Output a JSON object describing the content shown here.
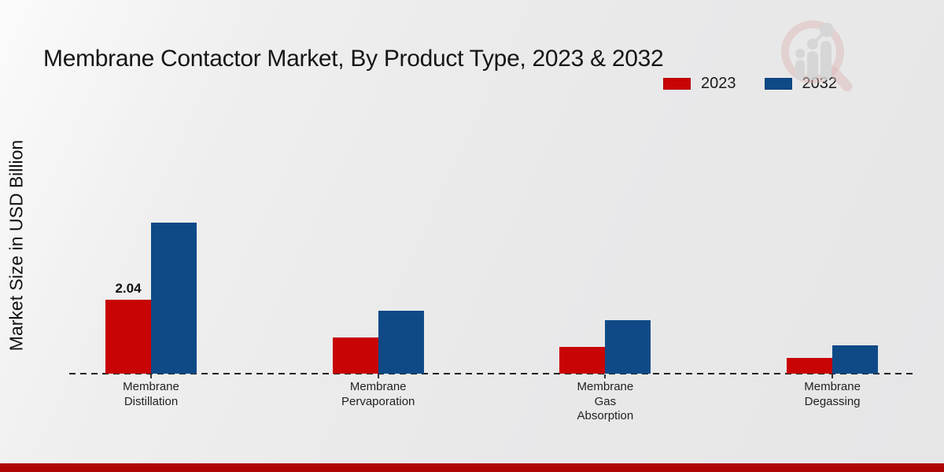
{
  "title": "Membrane Contactor Market, By Product Type, 2023 & 2032",
  "y_axis_label": "Market Size in USD Billion",
  "legend": {
    "items": [
      {
        "label": "2023",
        "color": "#c80404"
      },
      {
        "label": "2032",
        "color": "#0f4a87"
      }
    ]
  },
  "watermark_icon": "magnifier-bar-chart-logo",
  "colors": {
    "series_2023": "#c80404",
    "series_2032": "#0f4a87",
    "background": "#e9e9ea",
    "footer_band": "#b10505",
    "axis_line": "#222222"
  },
  "chart_data": {
    "type": "bar",
    "title": "Membrane Contactor Market, By Product Type, 2023 & 2032",
    "xlabel": "",
    "ylabel": "Market Size in USD Billion",
    "categories": [
      "Membrane\nDistillation",
      "Membrane\nPervaporation",
      "Membrane\nGas\nAbsorption",
      "Membrane\nDegassing"
    ],
    "series": [
      {
        "name": "2023",
        "color": "#c80404",
        "values": [
          2.04,
          1.0,
          0.74,
          0.44
        ],
        "labels": [
          "2.04",
          "",
          "",
          ""
        ]
      },
      {
        "name": "2032",
        "color": "#0f4a87",
        "values": [
          4.16,
          1.74,
          1.47,
          0.78
        ],
        "labels": [
          "",
          "",
          "",
          ""
        ]
      }
    ],
    "ylim": [
      0,
      4.5
    ],
    "grid": false,
    "y_axis_ticks_visible": false,
    "legend_position": "top-right",
    "baseline_style": "dashed"
  }
}
